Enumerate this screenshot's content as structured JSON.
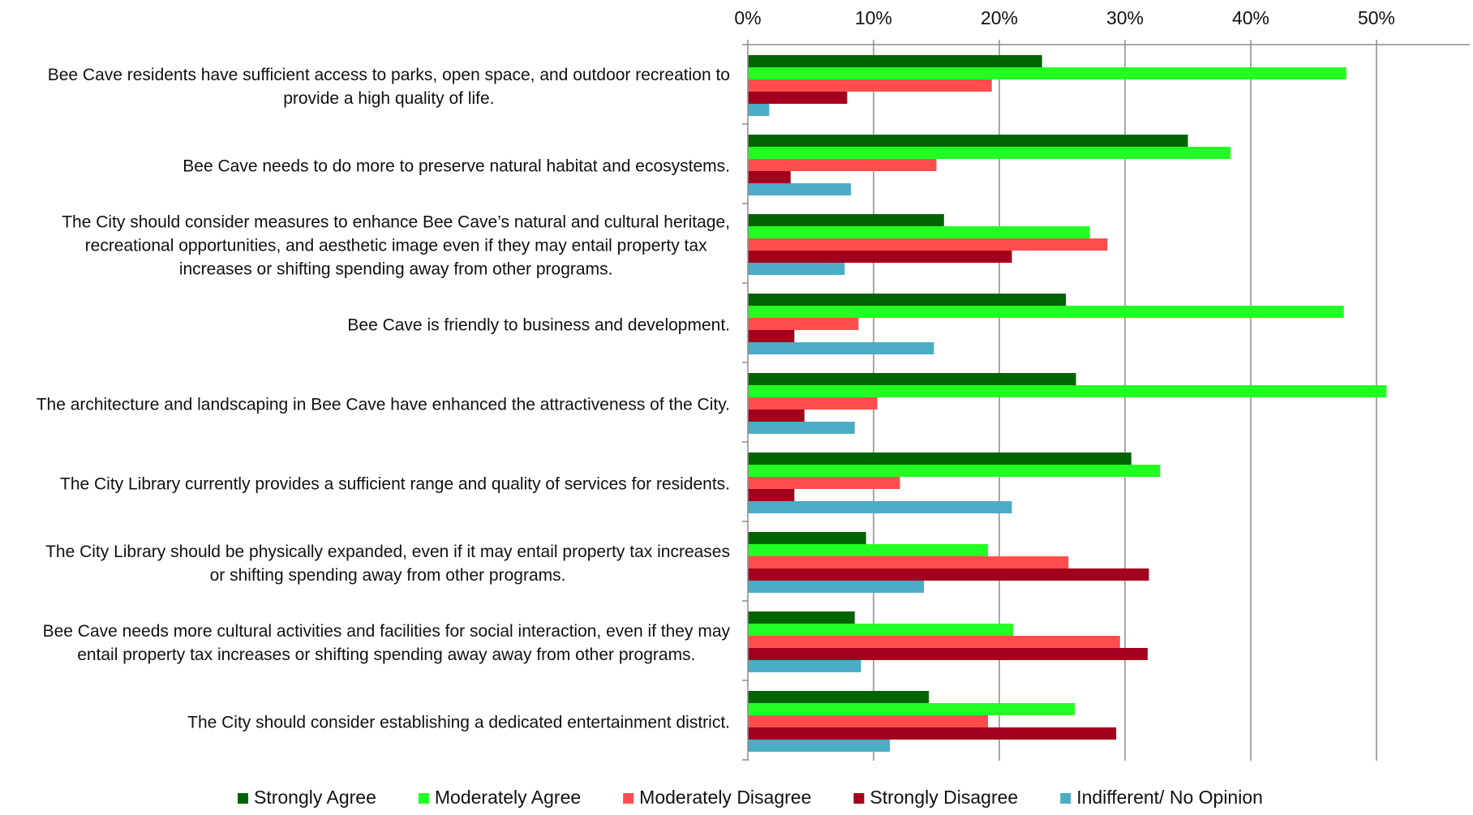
{
  "chart_data": {
    "type": "bar",
    "orientation": "horizontal",
    "title": "",
    "xlabel": "",
    "ylabel": "",
    "xlim": [
      0,
      0.57
    ],
    "x_ticks": [
      0,
      0.1,
      0.2,
      0.3,
      0.4,
      0.5
    ],
    "x_tick_labels": [
      "0%",
      "10%",
      "20%",
      "30%",
      "40%",
      "50%"
    ],
    "x_axis_position": "top",
    "grid": true,
    "legend_position": "bottom",
    "categories": [
      [
        "Bee Cave residents have sufficient access to parks, open space, and outdoor recreation to",
        "provide a high quality of life."
      ],
      [
        "Bee Cave needs to do more to preserve natural habitat and ecosystems."
      ],
      [
        "The City should consider measures to enhance Bee Cave’s natural and cultural heritage,",
        "recreational opportunities, and aesthetic image even if they may entail property tax",
        "increases or shifting spending away from other programs."
      ],
      [
        "Bee Cave is friendly to business and development."
      ],
      [
        "The architecture and landscaping in Bee Cave have enhanced the attractiveness of the City."
      ],
      [
        "The City Library currently provides a sufficient range and quality of services for residents."
      ],
      [
        "The City Library should be physically expanded, even if it may entail property tax increases",
        "or shifting spending away from other programs."
      ],
      [
        "Bee Cave needs more cultural activities and facilities for social interaction, even if they may",
        "entail property tax increases or shifting spending away away from other programs."
      ],
      [
        "The City should consider establishing a dedicated entertainment district."
      ]
    ],
    "series": [
      {
        "name": "Strongly Agree",
        "color": "#006400",
        "values": [
          0.234,
          0.35,
          0.156,
          0.253,
          0.261,
          0.305,
          0.094,
          0.085,
          0.144
        ]
      },
      {
        "name": "Moderately Agree",
        "color": "#22ff22",
        "values": [
          0.476,
          0.384,
          0.272,
          0.474,
          0.508,
          0.328,
          0.191,
          0.211,
          0.26
        ]
      },
      {
        "name": "Moderately Disagree",
        "color": "#ff4d4d",
        "values": [
          0.194,
          0.15,
          0.286,
          0.088,
          0.103,
          0.121,
          0.255,
          0.296,
          0.191
        ]
      },
      {
        "name": "Strongly Disagree",
        "color": "#a3001e",
        "values": [
          0.079,
          0.034,
          0.21,
          0.037,
          0.045,
          0.037,
          0.319,
          0.318,
          0.293
        ]
      },
      {
        "name": "Indifferent/ No Opinion",
        "color": "#4bacc6",
        "values": [
          0.017,
          0.082,
          0.077,
          0.148,
          0.085,
          0.21,
          0.14,
          0.09,
          0.113
        ]
      }
    ]
  }
}
